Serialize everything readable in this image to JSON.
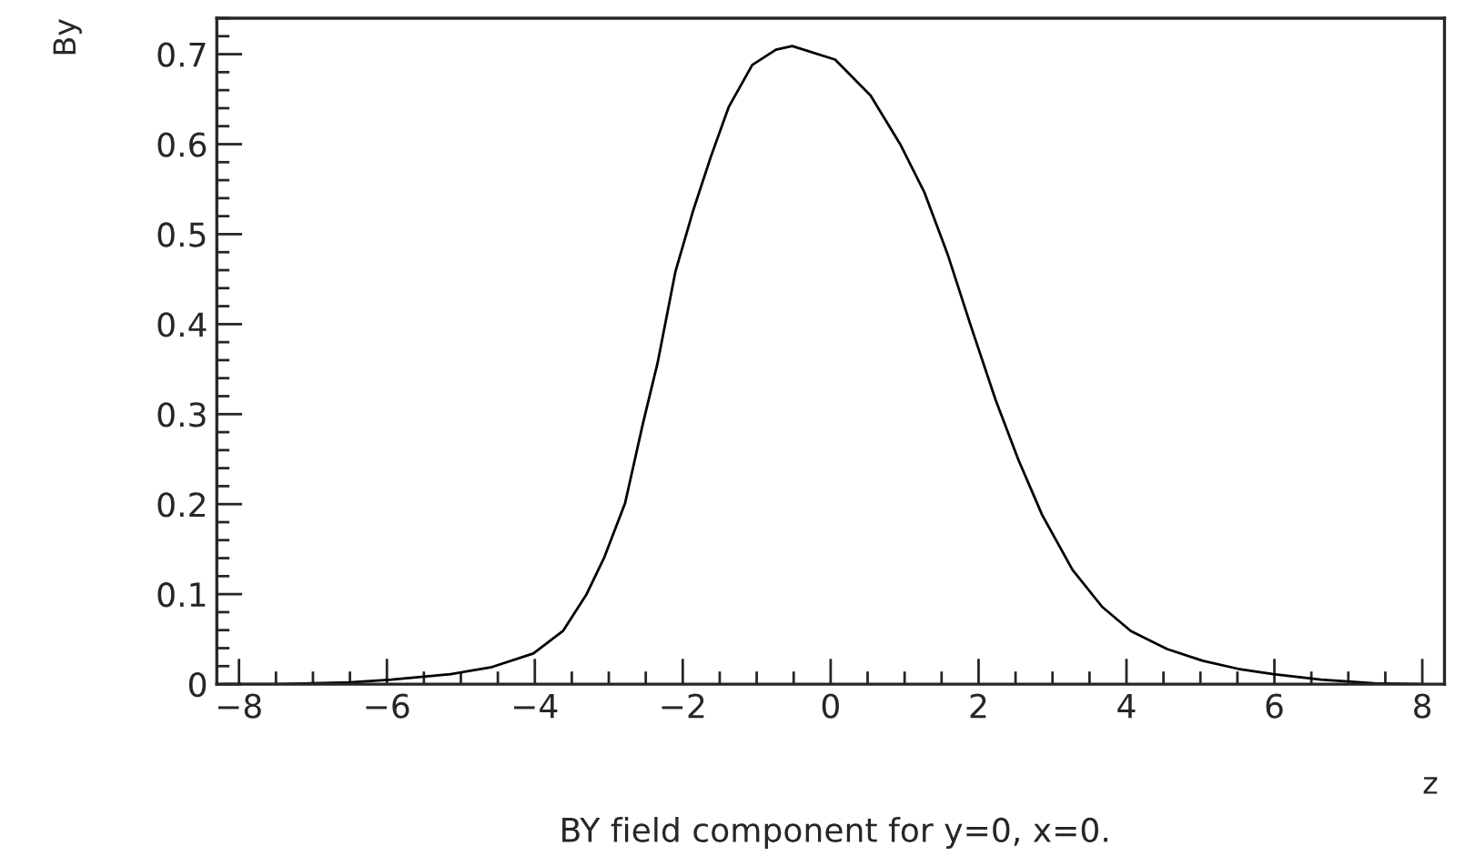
{
  "chart_data": {
    "type": "line",
    "xlabel": "z",
    "ylabel": "By",
    "annotations": [
      "BY field component for y=0, x=0."
    ],
    "series": [
      {
        "color": "#000000",
        "x": [
          -8.2,
          -7.54,
          -6.5,
          -5.94,
          -5.14,
          -4.58,
          -4.02,
          -3.62,
          -3.3,
          -3.06,
          -2.78,
          -2.54,
          -2.34,
          -2.1,
          -1.86,
          -1.62,
          -1.38,
          -1.06,
          -0.74,
          -0.52,
          0.06,
          0.54,
          0.94,
          1.27,
          1.58,
          1.9,
          2.23,
          2.54,
          2.86,
          3.27,
          3.67,
          4.06,
          4.55,
          5.03,
          5.51,
          5.99,
          6.63,
          7.35,
          8.0
        ],
        "values": [
          0.0,
          0.0,
          0.002,
          0.005,
          0.011,
          0.019,
          0.034,
          0.059,
          0.1,
          0.141,
          0.201,
          0.289,
          0.357,
          0.458,
          0.526,
          0.586,
          0.641,
          0.688,
          0.705,
          0.709,
          0.694,
          0.654,
          0.6,
          0.546,
          0.478,
          0.397,
          0.316,
          0.249,
          0.188,
          0.127,
          0.086,
          0.059,
          0.039,
          0.026,
          0.017,
          0.011,
          0.005,
          0.001,
          0.0
        ]
      }
    ],
    "xlim": [
      -8.3,
      8.3
    ],
    "ylim": [
      0,
      0.74
    ],
    "xticks": [
      -8,
      -6,
      -4,
      -2,
      0,
      2,
      4,
      6,
      8
    ],
    "yticks": [
      0,
      0.1,
      0.2,
      0.3,
      0.4,
      0.5,
      0.6,
      0.7
    ],
    "grid": false,
    "legend": false,
    "marker": "none",
    "line_style": "solid"
  }
}
